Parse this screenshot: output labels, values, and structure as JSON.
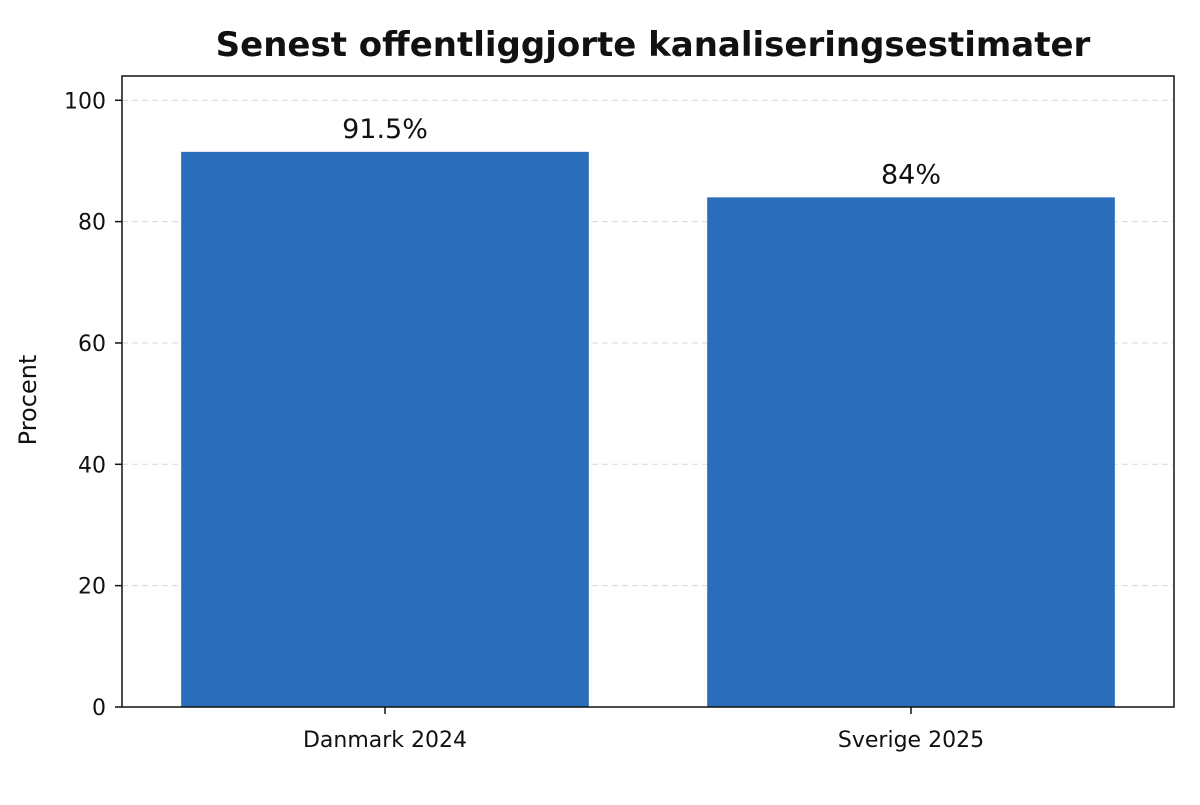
{
  "chart_data": {
    "type": "bar",
    "title": "Senest offentliggjorte kanaliseringsestimater",
    "xlabel": "",
    "ylabel": "Procent",
    "categories": [
      "Danmark 2024",
      "Sverige 2025"
    ],
    "values": [
      91.5,
      84
    ],
    "data_labels": [
      "91.5%",
      "84%"
    ],
    "ylim": [
      0,
      104
    ],
    "yticks": [
      0,
      20,
      40,
      60,
      80,
      100
    ],
    "grid": true,
    "legend": "none",
    "bar_color": "#2a6ebb"
  }
}
